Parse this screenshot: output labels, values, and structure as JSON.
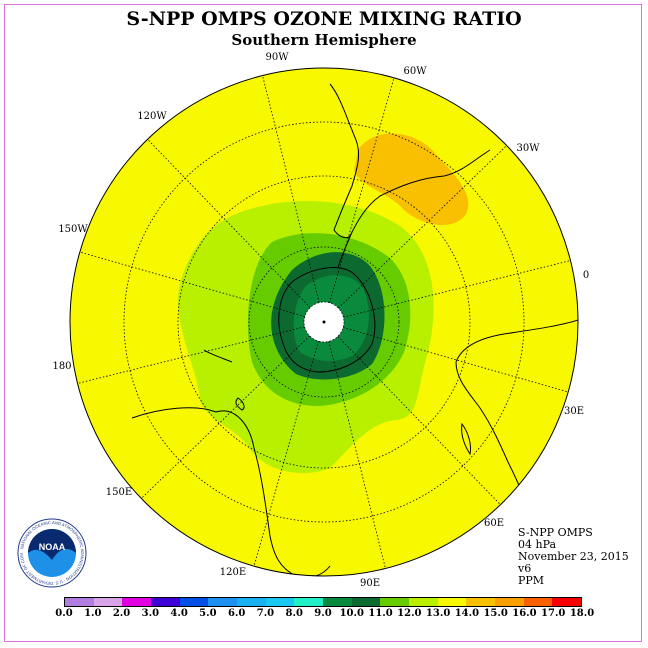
{
  "title": "S-NPP OMPS OZONE MIXING RATIO",
  "subtitle": "Southern Hemisphere",
  "longitude_labels": [
    "90W",
    "60W",
    "30W",
    "0",
    "30E",
    "60E",
    "90E",
    "120E",
    "150E",
    "180",
    "150W",
    "120W"
  ],
  "info": {
    "instrument": "S-NPP OMPS",
    "level": "04 hPa",
    "date": "November 23, 2015",
    "version": "v6",
    "units": "PPM"
  },
  "logo": {
    "text": "NOAA",
    "ring_text": "NATIONAL OCEANIC AND ATMOSPHERIC ADMINISTRATION · U.S. DEPARTMENT OF COMMERCE"
  },
  "colorbar": {
    "ticks": [
      "0.0",
      "1.0",
      "2.0",
      "3.0",
      "4.0",
      "5.0",
      "6.0",
      "7.0",
      "8.0",
      "9.0",
      "10.0",
      "11.0",
      "12.0",
      "13.0",
      "14.0",
      "15.0",
      "16.0",
      "17.0",
      "18.0"
    ],
    "colors": [
      "#b07de0",
      "#d9a3e8",
      "#e000e0",
      "#3c00d6",
      "#0050e8",
      "#1e90f0",
      "#18b0ee",
      "#18c8f0",
      "#20f0c8",
      "#0a8a3c",
      "#0c6a30",
      "#66cc00",
      "#b8f000",
      "#f8f800",
      "#f8c000",
      "#f8a000",
      "#f86000",
      "#f80000",
      "#8b5a3c"
    ]
  }
}
